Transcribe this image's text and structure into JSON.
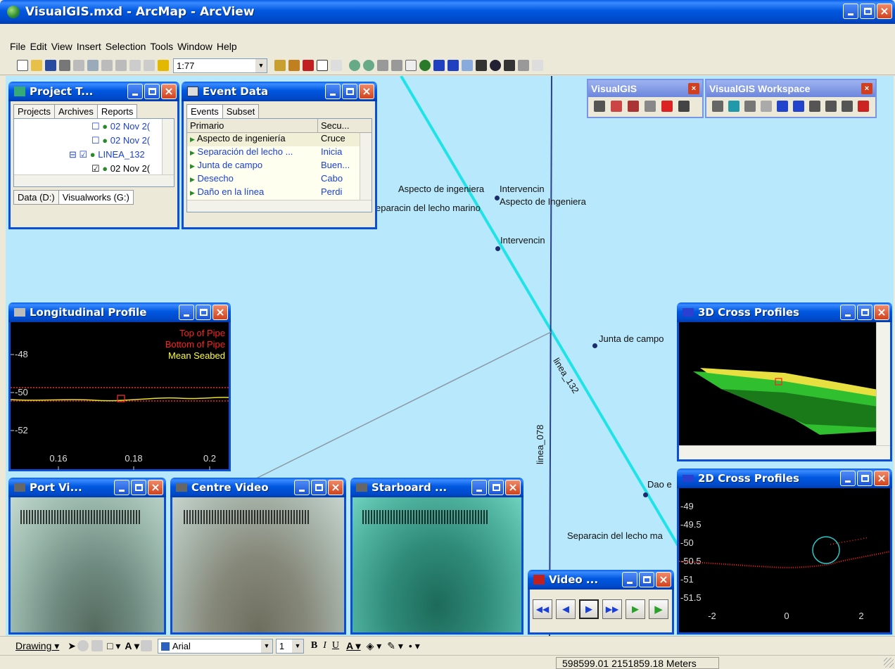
{
  "app": {
    "title": "VisualGIS.mxd - ArcMap - ArcView",
    "menu": [
      "File",
      "Edit",
      "View",
      "Insert",
      "Selection",
      "Tools",
      "Window",
      "Help"
    ],
    "scale": "1:77",
    "status_coords": "598599.01  2151859.18 Meters"
  },
  "toolbars": {
    "visualgis_title": "VisualGIS",
    "workspace_title": "VisualGIS Workspace",
    "drawing_label": "Drawing",
    "font_name": "Arial",
    "font_size": "1"
  },
  "project_tree": {
    "title": "Project T...",
    "tabs": [
      "Projects",
      "Archives",
      "Reports"
    ],
    "items": [
      "02 Nov 2(",
      "02 Nov 2(",
      "LINEA_132",
      "02 Nov 2("
    ],
    "bottom_tabs": [
      "Data (D:)",
      "Visualworks (G:)"
    ]
  },
  "event_data": {
    "title": "Event Data",
    "tabs": [
      "Events",
      "Subset"
    ],
    "columns": [
      "Primario",
      "Secu..."
    ],
    "rows": [
      {
        "primary": "Aspecto de ingeniería",
        "secondary": "Cruce"
      },
      {
        "primary": "Separación del lecho ...",
        "secondary": "Inicia"
      },
      {
        "primary": "Junta de campo",
        "secondary": "Buen..."
      },
      {
        "primary": "Desecho",
        "secondary": "Cabo"
      },
      {
        "primary": "Daño en la línea",
        "secondary": "Perdi"
      }
    ]
  },
  "map": {
    "labels": [
      "Aspecto de ingeniera",
      "Intervencin",
      "Aspecto de Ingeniera",
      "eparacin del lecho marino",
      "Intervencin",
      "Junta de campo",
      "Dao e",
      "Separacin del lecho ma"
    ],
    "line_labels": [
      "linea_132",
      "linea_078"
    ],
    "colors": {
      "water": "#b8e8fb",
      "pipeline": "#1fe3e8",
      "survey_line": "#2a3f8f"
    }
  },
  "longitudinal": {
    "title": "Longitudinal Profile",
    "legend": [
      "Top of Pipe",
      "Bottom of Pipe",
      "Mean Seabed"
    ],
    "y_ticks": [
      "-48",
      "-50",
      "-52"
    ],
    "x_ticks": [
      "0.16",
      "0.18",
      "0.2"
    ]
  },
  "cross3d": {
    "title": "3D Cross Profiles"
  },
  "cross2d": {
    "title": "2D Cross Profiles",
    "y_ticks": [
      "-49",
      "-49.5",
      "-50",
      "-50.5",
      "-51",
      "-51.5"
    ],
    "x_ticks": [
      "-2",
      "0",
      "2"
    ]
  },
  "videos": {
    "port_title": "Port Vi...",
    "centre_title": "Centre Video",
    "starboard_title": "Starboard ...",
    "control_title": "Video ..."
  }
}
